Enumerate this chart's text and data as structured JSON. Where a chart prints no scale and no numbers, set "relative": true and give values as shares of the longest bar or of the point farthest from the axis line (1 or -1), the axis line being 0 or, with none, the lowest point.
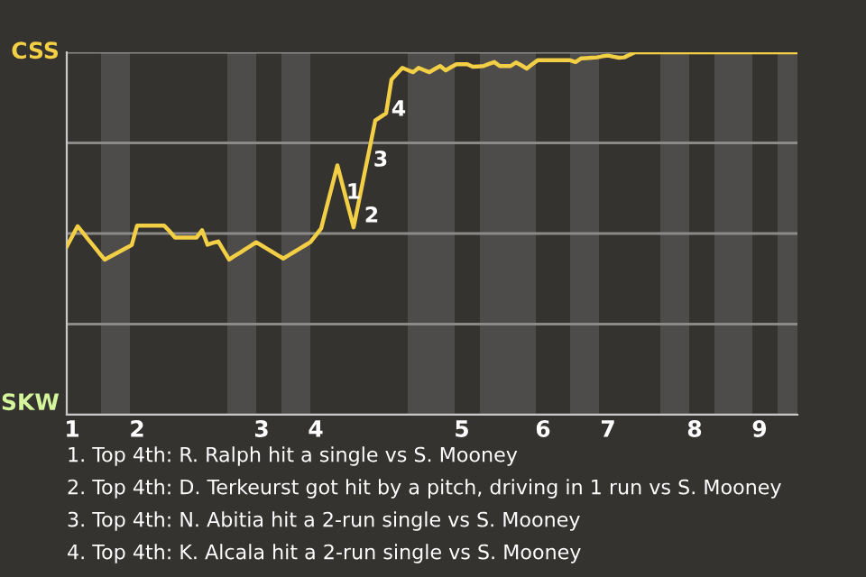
{
  "chart_data": {
    "type": "line",
    "relative": true,
    "categories": [
      null,
      "1",
      null,
      null,
      null,
      null,
      null,
      null,
      null,
      null,
      null,
      null,
      null,
      "2",
      null,
      null,
      null,
      null,
      null,
      null,
      null,
      null,
      null,
      null,
      null,
      null,
      null,
      null,
      null,
      null,
      null,
      null,
      null,
      null,
      null,
      null,
      "3",
      null,
      null,
      null,
      null,
      null,
      null,
      null,
      null,
      null,
      "4",
      null,
      null,
      null,
      null,
      null,
      null,
      null,
      null,
      null,
      null,
      null,
      null,
      null,
      null,
      null,
      null,
      null,
      null,
      null,
      null,
      null,
      null,
      null,
      null,
      null,
      null,
      "5",
      null,
      null,
      null,
      null,
      null,
      null,
      null,
      null,
      null,
      null,
      null,
      null,
      null,
      null,
      "6",
      null,
      null,
      null,
      null,
      null,
      null,
      null,
      null,
      null,
      null,
      null,
      "7",
      null,
      null,
      null,
      null,
      null,
      null,
      null,
      null,
      null,
      null,
      null,
      null,
      null,
      null,
      null,
      "8",
      null,
      null,
      null,
      null,
      null,
      null,
      null,
      null,
      null,
      null,
      null,
      "9",
      null,
      null,
      null,
      null,
      null,
      null,
      null
    ],
    "series": [
      {
        "color": "#f2cf45",
        "values": [
          0.464,
          0.492,
          0.52,
          0.502,
          0.483,
          0.465,
          0.446,
          0.428,
          0.436,
          0.444,
          0.452,
          0.46,
          0.468,
          0.522,
          0.522,
          0.522,
          0.522,
          0.522,
          0.522,
          0.506,
          0.489,
          0.489,
          0.489,
          0.489,
          0.489,
          0.509,
          0.469,
          0.474,
          0.478,
          0.453,
          0.428,
          0.438,
          0.447,
          0.457,
          0.466,
          0.476,
          0.467,
          0.458,
          0.449,
          0.44,
          0.431,
          0.44,
          0.449,
          0.458,
          0.467,
          0.476,
          0.495,
          0.514,
          0.572,
          0.63,
          0.688,
          0.631,
          0.574,
          0.517,
          0.591,
          0.665,
          0.738,
          0.812,
          0.822,
          0.832,
          0.925,
          0.941,
          0.957,
          0.951,
          0.945,
          0.957,
          0.951,
          0.945,
          0.954,
          0.962,
          0.95,
          0.959,
          0.967,
          0.967,
          0.967,
          0.96,
          0.961,
          0.962,
          0.968,
          0.973,
          0.962,
          0.962,
          0.962,
          0.972,
          0.964,
          0.955,
          0.967,
          0.978,
          0.978,
          0.978,
          0.978,
          0.978,
          0.978,
          0.978,
          0.973,
          0.983,
          0.984,
          0.985,
          0.986,
          0.989,
          0.991,
          0.988,
          0.985,
          0.986,
          0.993,
          1,
          1,
          1,
          1,
          1,
          1,
          1,
          1,
          1,
          1,
          1,
          1,
          1,
          1,
          1,
          1,
          1,
          1,
          1,
          1,
          1,
          1,
          1,
          1,
          1,
          1,
          1,
          1,
          1,
          1,
          1
        ]
      }
    ],
    "grid": "y",
    "marker": "none",
    "line_style": "solid",
    "annotations": [
      "CSS",
      "SKW",
      "1",
      "2",
      "3",
      "4",
      "1. Top 4th: R. Ralph hit a single vs S. Mooney",
      "2. Top 4th: D. Terkeurst got hit by a pitch, driving in 1 run vs S. Mooney",
      "3. Top 4th: N. Abitia hit a 2-run single vs S. Mooney",
      "4. Top 4th: K. Alcala hit a 2-run single vs S. Mooney"
    ]
  }
}
